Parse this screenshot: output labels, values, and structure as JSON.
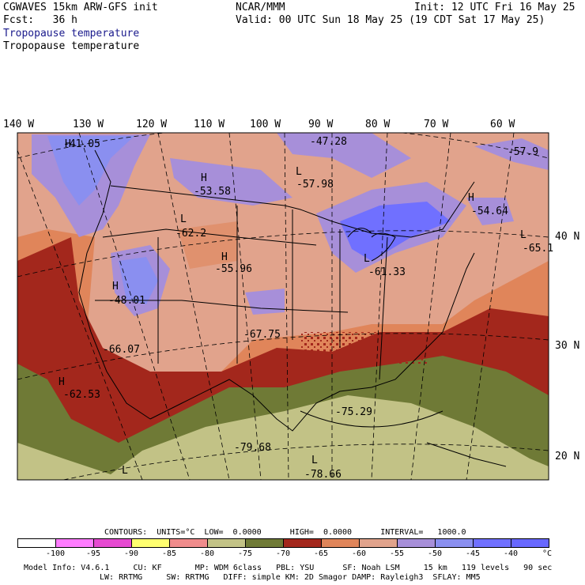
{
  "header": {
    "model_title": "CGWAVES 15km ARW-GFS init",
    "forecast": "Fcst:   36 h",
    "center": "NCAR/MMM",
    "init": "Init: 12 UTC Fri 16 May 25",
    "valid": "Valid: 00 UTC Sun 18 May 25 (19 CDT Sat 17 May 25)",
    "field_title_1": "Tropopause temperature",
    "field_title_2": "Tropopause temperature"
  },
  "colors": {
    "title_blue": "#1a1a8c",
    "map_bands": {
      "-100": "#ffffff",
      "-95": "#ff7cff",
      "-90": "#ffff70",
      "-85": "#f08c8c",
      "-80": "#c2c286",
      "-75": "#6f7a36",
      "-70": "#a3271c",
      "-65": "#e0855a",
      "-60": "#e1a38c",
      "-55": "#a78fd9",
      "-50": "#8a8ff0",
      "-45": "#7070ff"
    }
  },
  "map": {
    "lon_labels": [
      "140 W",
      "130 W",
      "120 W",
      "110 W",
      "100 W",
      "90 W",
      "80 W",
      "70 W",
      "60 W"
    ],
    "lat_labels": [
      "40 N",
      "30 N",
      "20 N"
    ],
    "extrema": [
      {
        "type": "H",
        "value": "-41.05"
      },
      {
        "type": "",
        "value": "-47.28"
      },
      {
        "type": "",
        "value": "-57.9"
      },
      {
        "type": "H",
        "value": "-53.58"
      },
      {
        "type": "L",
        "value": "-57.98"
      },
      {
        "type": "L",
        "value": "-62.2"
      },
      {
        "type": "H",
        "value": "-54.64"
      },
      {
        "type": "L",
        "value": "-65.1"
      },
      {
        "type": "H",
        "value": "-55.96"
      },
      {
        "type": "L",
        "value": "-61.33"
      },
      {
        "type": "H",
        "value": "-48.01"
      },
      {
        "type": "",
        "value": "-67.75"
      },
      {
        "type": "",
        "value": "-66.07"
      },
      {
        "type": "H",
        "value": "-62.53"
      },
      {
        "type": "",
        "value": "-75.29"
      },
      {
        "type": "",
        "value": "-79.68"
      },
      {
        "type": "L",
        "value": "-78.66"
      },
      {
        "type": "L",
        "value": ""
      }
    ]
  },
  "contours_line": "CONTOURS:  UNITS=°C  LOW=  0.0000      HIGH=  0.0000      INTERVAL=   1000.0",
  "legend": {
    "ticks": [
      "-100",
      "-95",
      "-90",
      "-85",
      "-80",
      "-75",
      "-70",
      "-65",
      "-60",
      "-55",
      "-50",
      "-45",
      "-40",
      "°C"
    ],
    "colors": [
      "#ffffff",
      "#ff7cff",
      "#e64ad1",
      "#ffff70",
      "#f08c8c",
      "#c2c286",
      "#6f7a36",
      "#a3271c",
      "#e0855a",
      "#e1a38c",
      "#a78fd9",
      "#8a8ff0",
      "#7070ff",
      "#6868ff"
    ]
  },
  "footer": {
    "line1": "Model Info: V4.6.1     CU: KF       MP: WDM 6class   PBL: YSU      SF: Noah LSM     15 km   119 levels   90 sec",
    "line2": "LW: RRTMG     SW: RRTMG   DIFF: simple KM: 2D Smagor DAMP: Rayleigh3  SFLAY: MM5"
  }
}
